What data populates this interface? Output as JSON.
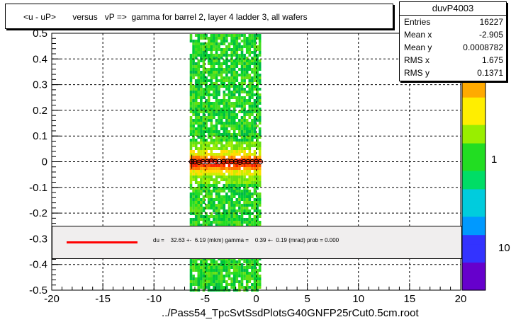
{
  "title": "<u - uP>       versus   vP =>  gamma for barrel 2, layer 4 ladder 3, all wafers",
  "stats": {
    "name": "duvP4003",
    "rows": [
      {
        "label": "Entries",
        "value": "16227"
      },
      {
        "label": "Mean x",
        "value": "-2.905"
      },
      {
        "label": "Mean y",
        "value": "0.0008782"
      },
      {
        "label": "RMS x",
        "value": "1.675"
      },
      {
        "label": "RMS y",
        "value": "0.1371"
      }
    ]
  },
  "fit": {
    "text": "du =    32.63 +-  6.19 (mkm) gamma =    0.39 +-  0.19 (mrad) prob = 0.000",
    "line_color": "#ff0000"
  },
  "colorbar": {
    "labels": [
      "1",
      "10"
    ],
    "stops": [
      "#6600cc",
      "#3333ff",
      "#0099ff",
      "#00ccdd",
      "#00dd66",
      "#22dd22",
      "#99ee00",
      "#ffee00",
      "#ffaa00",
      "#ff5500",
      "#ff0000"
    ]
  },
  "chart_data": {
    "type": "heatmap",
    "title": "<u - uP>       versus   vP =>  gamma for barrel 2, layer 4 ladder 3, all wafers",
    "xlabel": "../Pass54_TpcSvtSsdPlotsG40GNFP25rCut0.5cm.root",
    "ylabel": "",
    "xlim": [
      -20,
      20
    ],
    "ylim": [
      -0.5,
      0.5
    ],
    "x_ticks": [
      "-20",
      "-15",
      "-10",
      "-5",
      "0",
      "5",
      "10",
      "15",
      "20"
    ],
    "y_ticks": [
      "-0.5",
      "-0.4",
      "-0.3",
      "-0.2",
      "-0.1",
      "0",
      "0.1",
      "0.2",
      "0.3",
      "0.4",
      "0.5"
    ],
    "grid": true,
    "z_scale": "log",
    "band_x_range": [
      -6.5,
      0.3
    ],
    "profile_points": {
      "x": [
        -6.3,
        -6.0,
        -5.6,
        -5.2,
        -4.8,
        -4.4,
        -4.0,
        -3.6,
        -3.2,
        -2.8,
        -2.4,
        -2.0,
        -1.6,
        -1.2,
        -0.8,
        -0.4,
        0.0,
        0.4
      ],
      "y": [
        0.0,
        0.0,
        -0.002,
        0.0,
        0.0,
        0.002,
        0.0,
        0.0,
        0.0,
        0.002,
        0.0,
        0.0,
        -0.002,
        0.0,
        0.0,
        0.0,
        0.0,
        0.0
      ]
    }
  }
}
